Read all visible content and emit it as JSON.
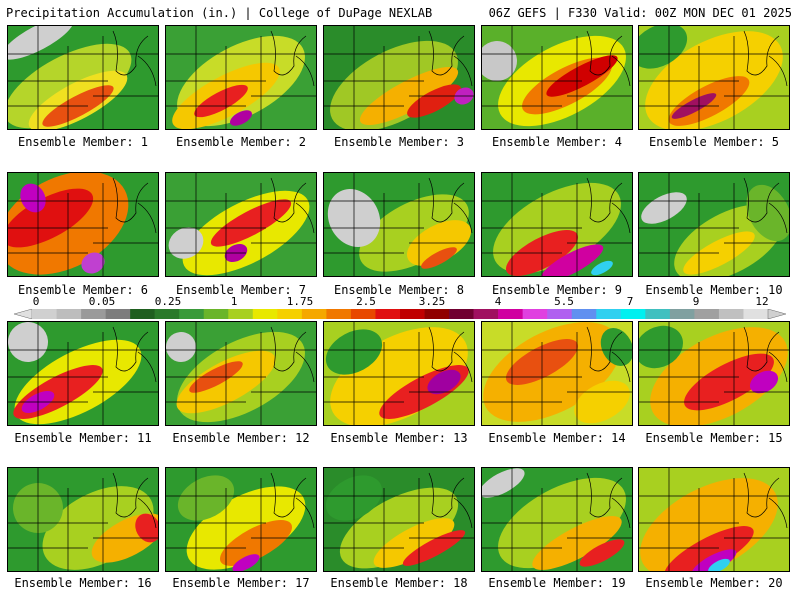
{
  "header": {
    "title_left": "Precipitation Accumulation (in.) | College of DuPage NEXLAB",
    "title_right": "06Z GEFS | F330 Valid: 00Z MON DEC 01 2025"
  },
  "colorbar": {
    "labels": [
      "0",
      "0.05",
      "0.25",
      "1",
      "1.75",
      "2.5",
      "3.25",
      "4",
      "5.5",
      "7",
      "9",
      "12"
    ],
    "colors": [
      "#d0d0d0",
      "#bdbdbd",
      "#9a9a9a",
      "#7d7d7d",
      "#1f5f1f",
      "#2a7a2a",
      "#3a9a3a",
      "#6ab52a",
      "#a8d020",
      "#e8e800",
      "#f5d000",
      "#f5a800",
      "#f07800",
      "#e84800",
      "#e01010",
      "#c00000",
      "#900000",
      "#700030",
      "#a01060",
      "#d000a0",
      "#e040e0",
      "#b060f0",
      "#6090f0",
      "#30d0f0",
      "#00f0f0",
      "#40c0c0",
      "#80a0a0",
      "#a0a0a0",
      "#c0c0c0",
      "#e0e0e0"
    ],
    "left_arrow_color": "#e0e0e0",
    "right_arrow_color": "#d0d0d0"
  },
  "panels": [
    {
      "label": "Ensemble Member: 1"
    },
    {
      "label": "Ensemble Member: 2"
    },
    {
      "label": "Ensemble Member: 3"
    },
    {
      "label": "Ensemble Member: 4"
    },
    {
      "label": "Ensemble Member: 5"
    },
    {
      "label": "Ensemble Member: 6"
    },
    {
      "label": "Ensemble Member: 7"
    },
    {
      "label": "Ensemble Member: 8"
    },
    {
      "label": "Ensemble Member: 9"
    },
    {
      "label": "Ensemble Member: 10"
    },
    {
      "label": "Ensemble Member: 11"
    },
    {
      "label": "Ensemble Member: 12"
    },
    {
      "label": "Ensemble Member: 13"
    },
    {
      "label": "Ensemble Member: 14"
    },
    {
      "label": "Ensemble Member: 15"
    },
    {
      "label": "Ensemble Member: 16"
    },
    {
      "label": "Ensemble Member: 17"
    },
    {
      "label": "Ensemble Member: 18"
    },
    {
      "label": "Ensemble Member: 19"
    },
    {
      "label": "Ensemble Member: 20"
    }
  ]
}
